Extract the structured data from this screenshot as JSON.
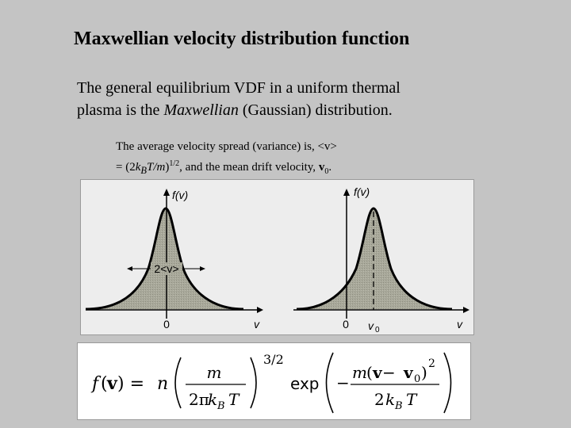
{
  "title": "Maxwellian velocity distribution function",
  "intro": {
    "line1": "The general equilibrium VDF in a uniform thermal",
    "line2_a": "plasma is the ",
    "line2_em": "Maxwellian",
    "line2_b": " (Gaussian) distribution."
  },
  "note": {
    "a": "The average velocity spread (variance) is,  <v>",
    "b": "= (2",
    "k": "k",
    "B": "B",
    "T": "T",
    "slash": "/",
    "m": "m",
    "close": ")",
    "exp": "1/2",
    "c": ", and the mean drift velocity, ",
    "v": "v",
    "zero": "0",
    "period": "."
  },
  "figure": {
    "left": {
      "ylabel": "f(v)",
      "xlabel": "v",
      "origin": "0",
      "width_label": "2<v>"
    },
    "right": {
      "ylabel": "f(v)",
      "xlabel": "v",
      "origin": "0",
      "drift_v": "v",
      "drift_sub": "0"
    }
  },
  "formula": {
    "f": "f",
    "lparen": "(",
    "v": "v",
    "rparen_eq": ") =",
    "n": "n",
    "m": "m",
    "two_pi": "2π",
    "kB_k": "k",
    "kB_B": "B",
    "T": "T",
    "power": "3/2",
    "exp": "exp",
    "minus": "−",
    "m2": "m",
    "paren_open": "(",
    "v2": "v",
    "minus2": " − ",
    "v0": "v",
    "v0_sub": "0",
    "paren_close": ")",
    "sq": "2",
    "two": "2",
    "kB2_k": "k",
    "kB2_B": "B",
    "T2": "T"
  },
  "colors": {
    "background": "#c4c4c4",
    "figure_bg": "#ededed",
    "curve_fill": "#a8a89a"
  }
}
